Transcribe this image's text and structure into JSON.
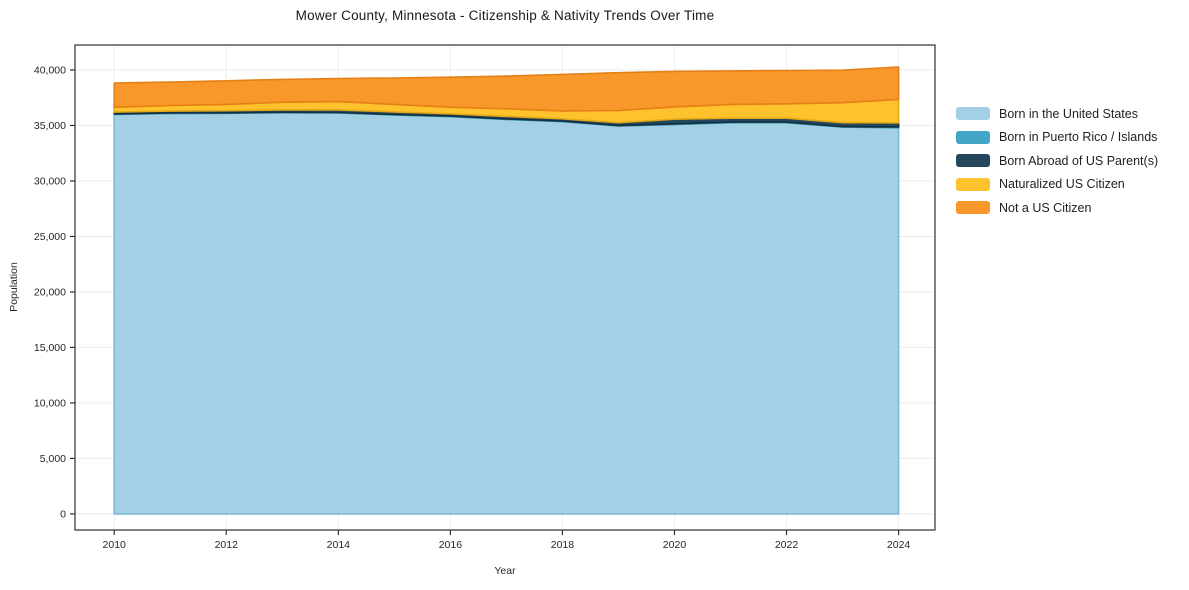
{
  "title": "Mower County, Minnesota - Citizenship & Nativity Trends Over Time",
  "chart_data": {
    "type": "area",
    "stacked": true,
    "title": "Mower County, Minnesota - Citizenship & Nativity Trends Over Time",
    "xlabel": "Year",
    "ylabel": "Population",
    "x": [
      2010,
      2011,
      2012,
      2013,
      2014,
      2015,
      2016,
      2017,
      2018,
      2019,
      2020,
      2021,
      2022,
      2023,
      2024
    ],
    "series": [
      {
        "id": "born_us",
        "name": "Born in the United States",
        "color": "#a3d0e4",
        "edge": "#7db9d5",
        "values": [
          36000,
          36080,
          36100,
          36150,
          36130,
          35950,
          35800,
          35550,
          35350,
          34950,
          35100,
          35250,
          35250,
          34850,
          34800
        ]
      },
      {
        "id": "born_pr_islands",
        "name": "Born in Puerto Rico / Islands",
        "color": "#42a6c6",
        "edge": "#2e8fb0",
        "values": [
          40,
          40,
          40,
          40,
          40,
          40,
          40,
          40,
          40,
          40,
          50,
          50,
          50,
          50,
          60
        ]
      },
      {
        "id": "born_abroad",
        "name": "Born Abroad of US Parent(s)",
        "color": "#23485e",
        "edge": "#16303f",
        "values": [
          160,
          170,
          190,
          210,
          230,
          230,
          210,
          230,
          210,
          260,
          410,
          350,
          350,
          350,
          370
        ]
      },
      {
        "id": "naturalized",
        "name": "Naturalized US Citizen",
        "color": "#fdc22c",
        "edge": "#e5a915",
        "values": [
          450,
          510,
          570,
          700,
          750,
          680,
          600,
          680,
          700,
          1100,
          1110,
          1250,
          1300,
          1800,
          2120
        ]
      },
      {
        "id": "not_citizen",
        "name": "Not a US Citizen",
        "color": "#f8982a",
        "edge": "#e67f16",
        "values": [
          2180,
          2120,
          2120,
          2050,
          2080,
          2380,
          2700,
          2950,
          3300,
          3400,
          3200,
          3020,
          3000,
          2930,
          2920
        ]
      }
    ],
    "x_ticks": [
      2010,
      2012,
      2014,
      2016,
      2018,
      2020,
      2022,
      2024
    ],
    "y_ticks": [
      0,
      5000,
      10000,
      15000,
      20000,
      25000,
      30000,
      35000,
      40000
    ],
    "xlim": [
      2009.3,
      2024.65
    ],
    "ylim": [
      -1450,
      42250
    ],
    "grid": true,
    "legend_position": "right"
  }
}
